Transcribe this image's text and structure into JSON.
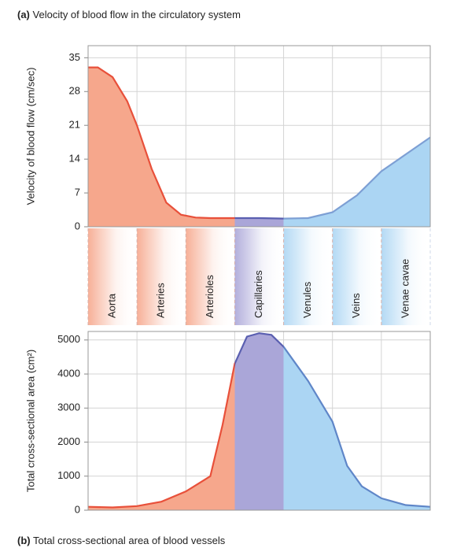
{
  "chart_data": [
    {
      "type": "area",
      "panel": "(a)",
      "title": "Velocity of blood flow in the circulatory system",
      "y_label": "Velocity of blood flow (cm/sec)",
      "categories": [
        "Aorta",
        "Arteries",
        "Arterioles",
        "Capillaries",
        "Venules",
        "Veins",
        "Venae cavae"
      ],
      "category_colors": [
        "#f6a78c",
        "#f6a78c",
        "#f6a78c",
        "#aaa6d8",
        "#abd5f3",
        "#abd5f3",
        "#abd5f3"
      ],
      "line_colors": [
        "#e8503a",
        "#e8503a",
        "#e8503a",
        "#5a5fb0",
        "#7d9fd4",
        "#7d9fd4",
        "#7d9fd4"
      ],
      "x": [
        0,
        0.2,
        0.5,
        0.8,
        1.0,
        1.3,
        1.6,
        1.9,
        2.2,
        2.5,
        3,
        3.5,
        4,
        4.5,
        5,
        5.5,
        6,
        6.5,
        7
      ],
      "values": [
        33,
        33,
        31,
        26,
        21,
        12,
        5,
        2.5,
        1.9,
        1.8,
        1.8,
        1.8,
        1.7,
        1.8,
        3,
        6.5,
        11.5,
        15,
        18.5
      ],
      "xlim": [
        0,
        7
      ],
      "ylim": [
        0,
        37.5
      ],
      "yticks": [
        0,
        7,
        14,
        21,
        28,
        35
      ],
      "grid": true
    },
    {
      "type": "area",
      "panel": "(b)",
      "title": "Total cross-sectional area of blood vessels",
      "y_label": "Total cross-sectional area (cm²)",
      "category_colors": [
        "#f6a78c",
        "#f6a78c",
        "#f6a78c",
        "#aaa6d8",
        "#abd5f3",
        "#abd5f3",
        "#abd5f3"
      ],
      "line_colors": [
        "#e8503a",
        "#e8503a",
        "#e8503a",
        "#5a5fb0",
        "#5f86c8",
        "#5f86c8",
        "#5f86c8"
      ],
      "x": [
        0,
        0.5,
        1,
        1.5,
        2,
        2.5,
        2.75,
        3,
        3.25,
        3.5,
        3.75,
        4,
        4.5,
        5,
        5.3,
        5.6,
        6,
        6.5,
        7
      ],
      "values": [
        100,
        80,
        120,
        250,
        550,
        1000,
        2500,
        4300,
        5100,
        5200,
        5150,
        4800,
        3800,
        2600,
        1300,
        700,
        350,
        150,
        100
      ],
      "xlim": [
        0,
        7
      ],
      "ylim": [
        0,
        5250
      ],
      "yticks": [
        0,
        1000,
        2000,
        3000,
        4000,
        5000
      ],
      "grid": true
    }
  ]
}
